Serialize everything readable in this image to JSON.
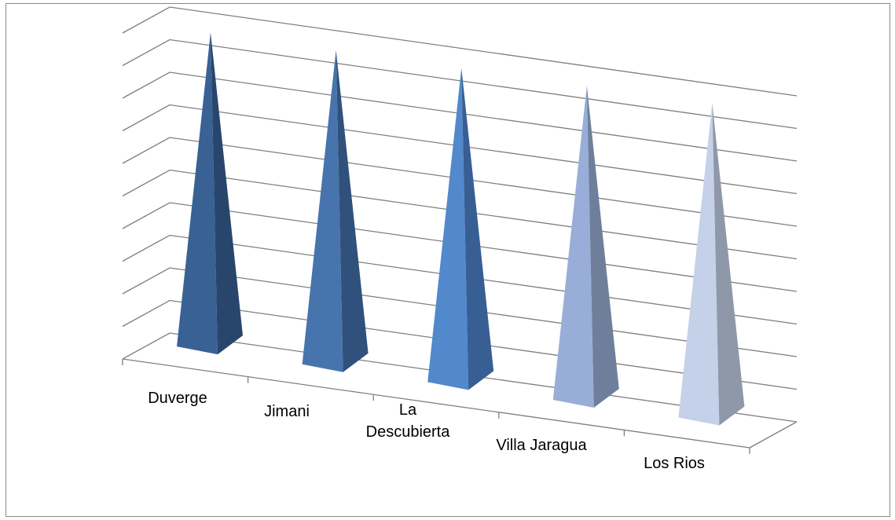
{
  "chart_data": {
    "type": "bar",
    "subtype": "3d-pyramid",
    "title": "",
    "xlabel": "",
    "ylabel": "",
    "categories": [
      "Duverge",
      "Jimani",
      "La Descubierta",
      "Villa Jaragua",
      "Los Rios"
    ],
    "category_lines": [
      [
        "Duverge"
      ],
      [
        "Jimani"
      ],
      [
        "La",
        "Descubierta"
      ],
      [
        "Villa Jaragua"
      ],
      [
        "Los Rios"
      ]
    ],
    "values": [
      10,
      10,
      10,
      10,
      10
    ],
    "ylim": [
      0,
      10
    ],
    "y_gridlines": 10,
    "grid": true,
    "legend": "none",
    "colors": [
      "#3A6194",
      "#4774AC",
      "#5288CC",
      "#98AED8",
      "#C5D1E9"
    ],
    "shade_colors": [
      "#28466C",
      "#30517B",
      "#385F93",
      "#6F7F9B",
      "#8E98A8"
    ],
    "grid_color": "#7F7F7F"
  }
}
